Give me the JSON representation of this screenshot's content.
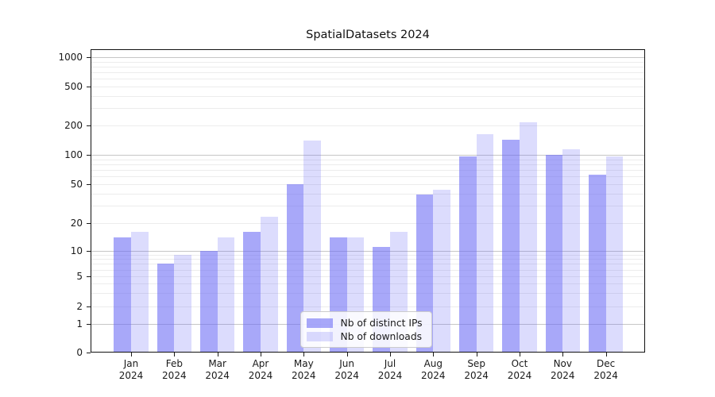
{
  "chart_data": {
    "type": "bar",
    "title": "SpatialDatasets 2024",
    "categories": [
      "Jan",
      "Feb",
      "Mar",
      "Apr",
      "May",
      "Jun",
      "Jul",
      "Aug",
      "Sep",
      "Oct",
      "Nov",
      "Dec"
    ],
    "category_year": "2024",
    "series": [
      {
        "name": "Nb of distinct IPs",
        "slug": "distinct-ips",
        "color": "#6969F594",
        "values": [
          14,
          7,
          10,
          16,
          50,
          14,
          11,
          39,
          97,
          143,
          100,
          63
        ]
      },
      {
        "name": "Nb of downloads",
        "slug": "downloads",
        "color": "#6969F53B",
        "values": [
          16,
          9,
          14,
          23,
          140,
          14,
          16,
          44,
          165,
          215,
          115,
          96
        ]
      }
    ],
    "xlabel": "",
    "ylabel": "",
    "yscale": "log with zero baseline (symlog)",
    "yticks": [
      0,
      1,
      2,
      5,
      10,
      20,
      50,
      100,
      200,
      500,
      1000
    ],
    "ylim": [
      0,
      1200
    ],
    "grid": true,
    "legend_position": "lower center",
    "colors": {
      "bar_base": "#6969F5",
      "axis_text": "#1a1a1a",
      "grid_major": "#c6c6c6",
      "grid_minor": "#ececec",
      "legend_border": "#cccccc",
      "background": "#ffffff"
    }
  }
}
